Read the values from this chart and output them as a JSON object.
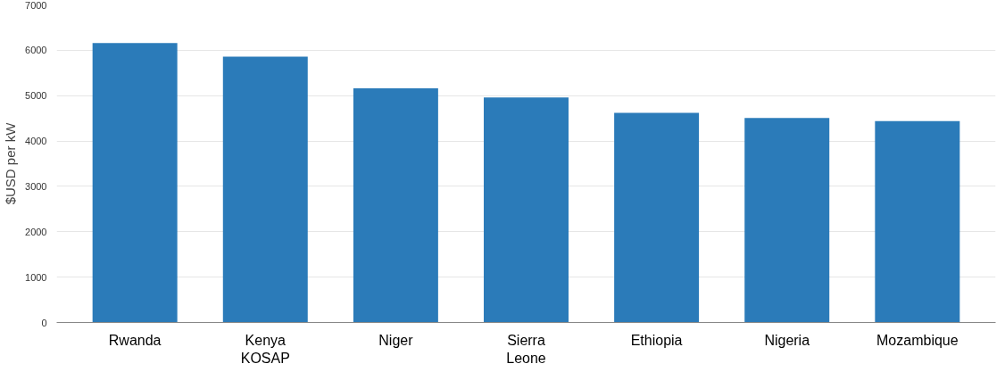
{
  "chart_data": {
    "type": "bar",
    "ylabel": "$USD per kW",
    "categories": [
      "Rwanda",
      "Kenya\nKOSAP",
      "Niger",
      "Sierra\nLeone",
      "Ethiopia",
      "Nigeria",
      "Mozambique"
    ],
    "values": [
      6160,
      5860,
      5160,
      4960,
      4620,
      4510,
      4440
    ],
    "color": "#2b7bb9",
    "ylim": [
      0,
      7000
    ],
    "yticks": [
      0,
      1000,
      2000,
      3000,
      4000,
      5000,
      6000,
      7000
    ],
    "grid": "y"
  }
}
